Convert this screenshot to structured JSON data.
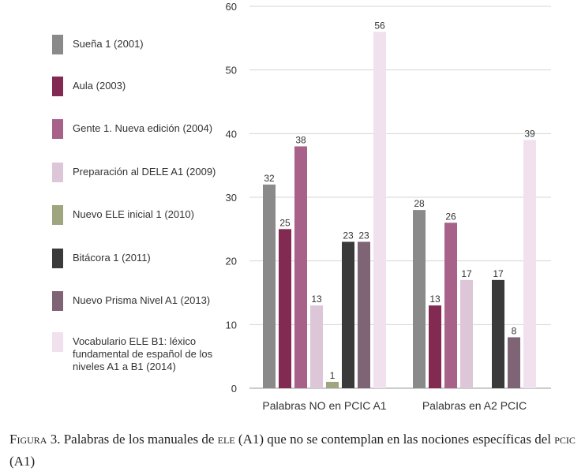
{
  "chart_data": {
    "type": "bar",
    "categories": [
      "Palabras NO en PCIC A1",
      "Palabras en A2 PCIC"
    ],
    "ylim": [
      0,
      60
    ],
    "yticks": [
      0,
      10,
      20,
      30,
      40,
      50,
      60
    ],
    "grid": true,
    "legend_position": "left",
    "series": [
      {
        "name": "Sueña 1 (2001)",
        "color": "#8a8a8a",
        "values": [
          32,
          28
        ]
      },
      {
        "name": "Aula (2003)",
        "color": "#832a52",
        "values": [
          25,
          13
        ]
      },
      {
        "name": "Gente 1. Nueva edición (2004)",
        "color": "#a8628a",
        "values": [
          38,
          26
        ]
      },
      {
        "name": "Preparación al DELE A1 (2009)",
        "color": "#dcc6d8",
        "values": [
          13,
          17
        ]
      },
      {
        "name": "Nuevo ELE inicial 1 (2010)",
        "color": "#9ea57f",
        "values": [
          1,
          null
        ]
      },
      {
        "name": "Bitácora 1 (2011)",
        "color": "#3a3a3a",
        "values": [
          23,
          17
        ]
      },
      {
        "name": "Nuevo Prisma Nivel A1 (2013)",
        "color": "#7e6474",
        "values": [
          23,
          8
        ]
      },
      {
        "name": "Vocabulario ELE B1: léxico fundamental de español de los niveles A1 a B1 (2014)",
        "color": "#f1e1ee",
        "values": [
          56,
          39
        ]
      }
    ]
  },
  "caption": {
    "label": "Figura",
    "number": "3.",
    "text_1": " Palabras de los manuales de ",
    "abbr_1": "ele",
    "text_2": " (A1) que no se contemplan en las nociones específicas del ",
    "abbr_2": "pcic",
    "text_3": " (A1)"
  }
}
